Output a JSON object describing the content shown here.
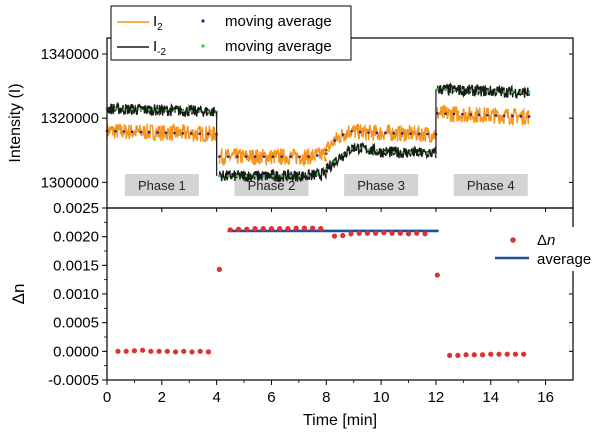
{
  "chart_data": [
    {
      "type": "line",
      "panel": "top",
      "xlabel": "",
      "ylabel": "Intensity (I)",
      "xlim": [
        0,
        17
      ],
      "ylim": [
        1292000,
        1345000
      ],
      "yticks": [
        1300000,
        1320000,
        1340000
      ],
      "ytick_labels": [
        "1300000",
        "1320000",
        "1340000"
      ],
      "grid": false,
      "legend_position": "top-left",
      "legend": {
        "i2_label": "I",
        "i2_sub": "2",
        "im2_label": "I",
        "im2_sub": "-2",
        "avg_label_1": "moving average",
        "avg_label_2": "moving average"
      },
      "phase_labels": [
        {
          "label": "Phase 1",
          "x": 2.0
        },
        {
          "label": "Phase 2",
          "x": 6.0
        },
        {
          "label": "Phase 3",
          "x": 10.0
        },
        {
          "label": "Phase 4",
          "x": 14.0
        }
      ],
      "series": [
        {
          "name": "I2",
          "color": "#f7941d",
          "segments": [
            {
              "x": [
                0.0,
                4.0
              ],
              "y": [
                1316000,
                1315000
              ]
            },
            {
              "x": [
                4.1,
                7.4,
                7.8,
                8.0
              ],
              "y": [
                1308000,
                1308000,
                1308500,
                1309000
              ]
            },
            {
              "x": [
                8.0,
                8.3,
                8.8,
                9.5,
                12.0
              ],
              "y": [
                1310000,
                1313000,
                1316000,
                1315500,
                1315000
              ]
            },
            {
              "x": [
                12.05,
                15.4
              ],
              "y": [
                1321500,
                1320500
              ]
            }
          ]
        },
        {
          "name": "I-2",
          "color": "#1a1a1a",
          "segments": [
            {
              "x": [
                0.0,
                4.0
              ],
              "y": [
                1323000,
                1322000
              ]
            },
            {
              "x": [
                4.1,
                7.2,
                7.8,
                8.0
              ],
              "y": [
                1302000,
                1302000,
                1302500,
                1303000
              ]
            },
            {
              "x": [
                8.0,
                8.5,
                9.0,
                10.0,
                12.0
              ],
              "y": [
                1304000,
                1308000,
                1311000,
                1309500,
                1309000
              ]
            },
            {
              "x": [
                12.05,
                15.4
              ],
              "y": [
                1329000,
                1328000
              ]
            }
          ]
        }
      ],
      "moving_average_colors": {
        "i2": "#1e2a8a",
        "im2": "#2ecc40"
      }
    },
    {
      "type": "scatter",
      "panel": "bottom",
      "xlabel": "Time [min]",
      "ylabel": "Δn",
      "xlim": [
        0,
        17
      ],
      "ylim": [
        -0.0005,
        0.0025
      ],
      "xticks": [
        0,
        2,
        4,
        6,
        8,
        10,
        12,
        14,
        16
      ],
      "xtick_labels": [
        "0",
        "2",
        "4",
        "6",
        "8",
        "10",
        "12",
        "14",
        "16"
      ],
      "yticks": [
        -0.0005,
        0.0,
        0.0005,
        0.001,
        0.0015,
        0.002,
        0.0025
      ],
      "ytick_labels": [
        "-0.0005",
        "0.0000",
        "0.0005",
        "0.0010",
        "0.0015",
        "0.0020",
        "0.0025"
      ],
      "grid": false,
      "legend_position": "top-right",
      "legend": {
        "dn_label": "Δ",
        "dn_italic": "n",
        "avg_label": "average"
      },
      "series": [
        {
          "name": "Δn",
          "color": "#e03030",
          "points": [
            [
              0.4,
              0.0
            ],
            [
              0.7,
              0.0
            ],
            [
              1.0,
              1e-05
            ],
            [
              1.3,
              2e-05
            ],
            [
              1.6,
              0.0
            ],
            [
              1.9,
              0.0
            ],
            [
              2.2,
              0.0
            ],
            [
              2.5,
              -1e-05
            ],
            [
              2.8,
              0.0
            ],
            [
              3.1,
              -1e-05
            ],
            [
              3.4,
              0.0
            ],
            [
              3.7,
              -1e-05
            ],
            [
              4.1,
              0.00143
            ],
            [
              4.5,
              0.00212
            ],
            [
              4.8,
              0.00213
            ],
            [
              5.1,
              0.00213
            ],
            [
              5.4,
              0.00214
            ],
            [
              5.7,
              0.00214
            ],
            [
              6.0,
              0.00214
            ],
            [
              6.3,
              0.00214
            ],
            [
              6.6,
              0.00214
            ],
            [
              6.9,
              0.00215
            ],
            [
              7.2,
              0.00215
            ],
            [
              7.5,
              0.00215
            ],
            [
              7.8,
              0.00214
            ],
            [
              8.3,
              0.00201
            ],
            [
              8.6,
              0.00202
            ],
            [
              8.9,
              0.00205
            ],
            [
              9.2,
              0.00206
            ],
            [
              9.5,
              0.00206
            ],
            [
              9.8,
              0.00206
            ],
            [
              10.1,
              0.00207
            ],
            [
              10.4,
              0.00206
            ],
            [
              10.7,
              0.00206
            ],
            [
              11.0,
              0.00205
            ],
            [
              11.3,
              0.00206
            ],
            [
              11.6,
              0.00205
            ],
            [
              12.05,
              0.00133
            ],
            [
              12.5,
              -7e-05
            ],
            [
              12.8,
              -7e-05
            ],
            [
              13.1,
              -6e-05
            ],
            [
              13.4,
              -6e-05
            ],
            [
              13.7,
              -6e-05
            ],
            [
              14.0,
              -5e-05
            ],
            [
              14.3,
              -5e-05
            ],
            [
              14.6,
              -5e-05
            ],
            [
              14.9,
              -5e-05
            ],
            [
              15.2,
              -5e-05
            ]
          ]
        },
        {
          "name": "average",
          "color": "#1f4e9c",
          "line": {
            "x": [
              4.4,
              12.1
            ],
            "y": [
              0.0021,
              0.0021
            ]
          }
        }
      ]
    }
  ]
}
